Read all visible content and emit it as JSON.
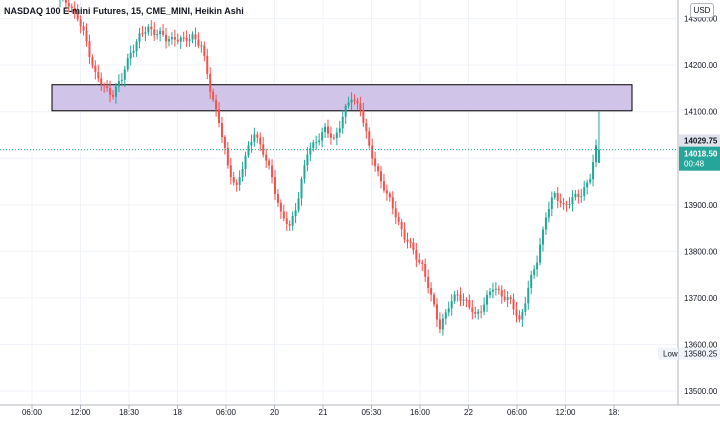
{
  "title": "NASDAQ 100 E-mini Futures, 15, CME_MINI, Heikin Ashi",
  "currency": "USD",
  "colors": {
    "up": "#26a69a",
    "down": "#ef5350",
    "zone_fill": "#d1c4e9",
    "zone_border": "#000000",
    "last_price_line": "#26a69a",
    "grid": "#f0f3fa",
    "axis_text": "#131722"
  },
  "price_labels": [
    {
      "text": "14029.75",
      "value": 14029.75,
      "style": "grey"
    },
    {
      "text": "14018.50",
      "value": 14018.5,
      "style": "green"
    },
    {
      "text": "00:48",
      "value": 14018.5,
      "style": "countdown"
    },
    {
      "text": "13580.25",
      "value": 13580.25,
      "style": "plain",
      "tag": "Low"
    }
  ],
  "chart_data": {
    "type": "candlestick",
    "style": "Heikin Ashi",
    "title": "NASDAQ 100 E-mini Futures, 15, CME_MINI, Heikin Ashi",
    "timeframe": "15",
    "exchange": "CME_MINI",
    "y_ticks": [
      "14300.00",
      "14200.00",
      "14100.00",
      "14000.00",
      "13900.00",
      "13800.00",
      "13700.00",
      "13600.00",
      "13500.00"
    ],
    "ylim": [
      13470,
      14340
    ],
    "x_ticks": [
      "06:00",
      "12:00",
      "18:30",
      "18",
      "06:00",
      "20",
      "21",
      "05:30",
      "16:00",
      "22",
      "06:00",
      "12:00",
      "18:"
    ],
    "grid": true,
    "last_price": 14018.5,
    "countdown": "00:48",
    "low_label": "Low",
    "low_value": 13580.25,
    "high_marker": 14029.75,
    "zone": {
      "from": 14102,
      "to": 14158
    },
    "series": [
      {
        "price_path": [
          [
            0,
            14340
          ],
          [
            3,
            14335
          ],
          [
            6,
            14300
          ],
          [
            9,
            14250
          ],
          [
            12,
            14180
          ],
          [
            15,
            14150
          ],
          [
            18,
            14140
          ],
          [
            21,
            14170
          ],
          [
            24,
            14230
          ],
          [
            27,
            14260
          ],
          [
            30,
            14280
          ],
          [
            33,
            14270
          ],
          [
            36,
            14255
          ],
          [
            39,
            14260
          ],
          [
            42,
            14250
          ],
          [
            45,
            14265
          ],
          [
            48,
            14240
          ],
          [
            51,
            14150
          ],
          [
            54,
            14080
          ],
          [
            57,
            13980
          ],
          [
            60,
            13940
          ],
          [
            63,
            14000
          ],
          [
            66,
            14060
          ],
          [
            69,
            14010
          ],
          [
            72,
            13960
          ],
          [
            75,
            13880
          ],
          [
            78,
            13850
          ],
          [
            81,
            13920
          ],
          [
            84,
            14010
          ],
          [
            87,
            14040
          ],
          [
            90,
            14060
          ],
          [
            93,
            14040
          ],
          [
            96,
            14090
          ],
          [
            99,
            14130
          ],
          [
            102,
            14110
          ],
          [
            105,
            14020
          ],
          [
            108,
            13970
          ],
          [
            111,
            13920
          ],
          [
            114,
            13880
          ],
          [
            117,
            13830
          ],
          [
            120,
            13800
          ],
          [
            123,
            13770
          ],
          [
            126,
            13700
          ],
          [
            129,
            13640
          ],
          [
            132,
            13680
          ],
          [
            135,
            13710
          ],
          [
            138,
            13690
          ],
          [
            141,
            13660
          ],
          [
            144,
            13690
          ],
          [
            147,
            13720
          ],
          [
            150,
            13710
          ],
          [
            153,
            13690
          ],
          [
            156,
            13650
          ],
          [
            159,
            13720
          ],
          [
            162,
            13780
          ],
          [
            165,
            13880
          ],
          [
            168,
            13920
          ],
          [
            171,
            13900
          ],
          [
            174,
            13910
          ],
          [
            177,
            13925
          ],
          [
            180,
            13960
          ],
          [
            182,
            14018.5
          ]
        ]
      }
    ]
  }
}
